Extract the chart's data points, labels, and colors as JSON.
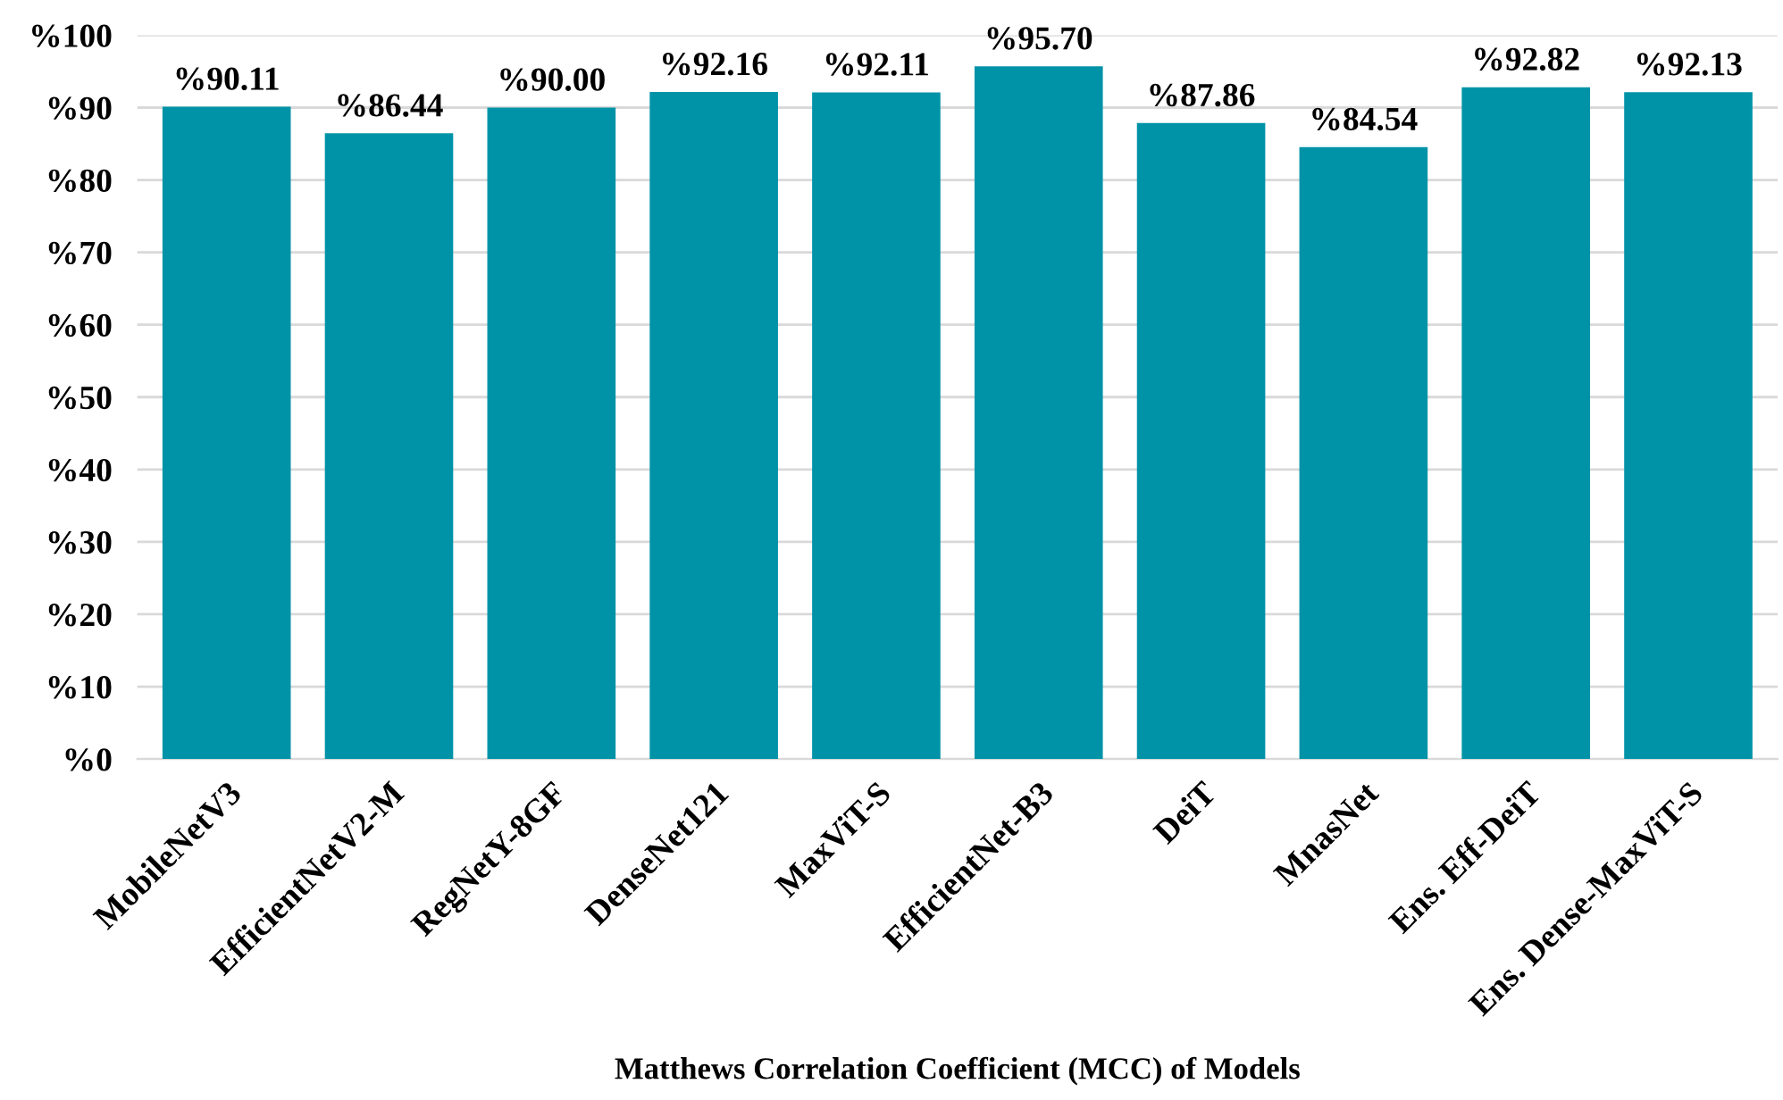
{
  "chart_data": {
    "type": "bar",
    "xlabel": "Matthews Correlation Coefficient (MCC) of Models",
    "categories": [
      "MobileNetV3",
      "EfficientNetV2-M",
      "RegNetY-8GF",
      "DenseNet121",
      "MaxViT-S",
      "EfficientNet-B3",
      "DeiT",
      "MnasNet",
      "Ens. Eff-DeiT",
      "Ens. Dense-MaxViT-S"
    ],
    "values": [
      90.11,
      86.44,
      90.0,
      92.16,
      92.11,
      95.7,
      87.86,
      84.54,
      92.82,
      92.13
    ],
    "value_labels": [
      "%90.11",
      "%86.44",
      "%90.00",
      "%92.16",
      "%92.11",
      "%95.70",
      "%87.86",
      "%84.54",
      "%92.82",
      "%92.13"
    ],
    "color": "#0093a8",
    "ylim": [
      0,
      100
    ],
    "yticks": [
      {
        "value": 0,
        "label": "%0"
      },
      {
        "value": 10,
        "label": "%10"
      },
      {
        "value": 20,
        "label": "%20"
      },
      {
        "value": 30,
        "label": "%30"
      },
      {
        "value": 40,
        "label": "%40"
      },
      {
        "value": 50,
        "label": "%50"
      },
      {
        "value": 60,
        "label": "%60"
      },
      {
        "value": 70,
        "label": "%70"
      },
      {
        "value": 80,
        "label": "%80"
      },
      {
        "value": 90,
        "label": "%90"
      },
      {
        "value": 100,
        "label": "%100"
      }
    ],
    "grid": "y"
  }
}
